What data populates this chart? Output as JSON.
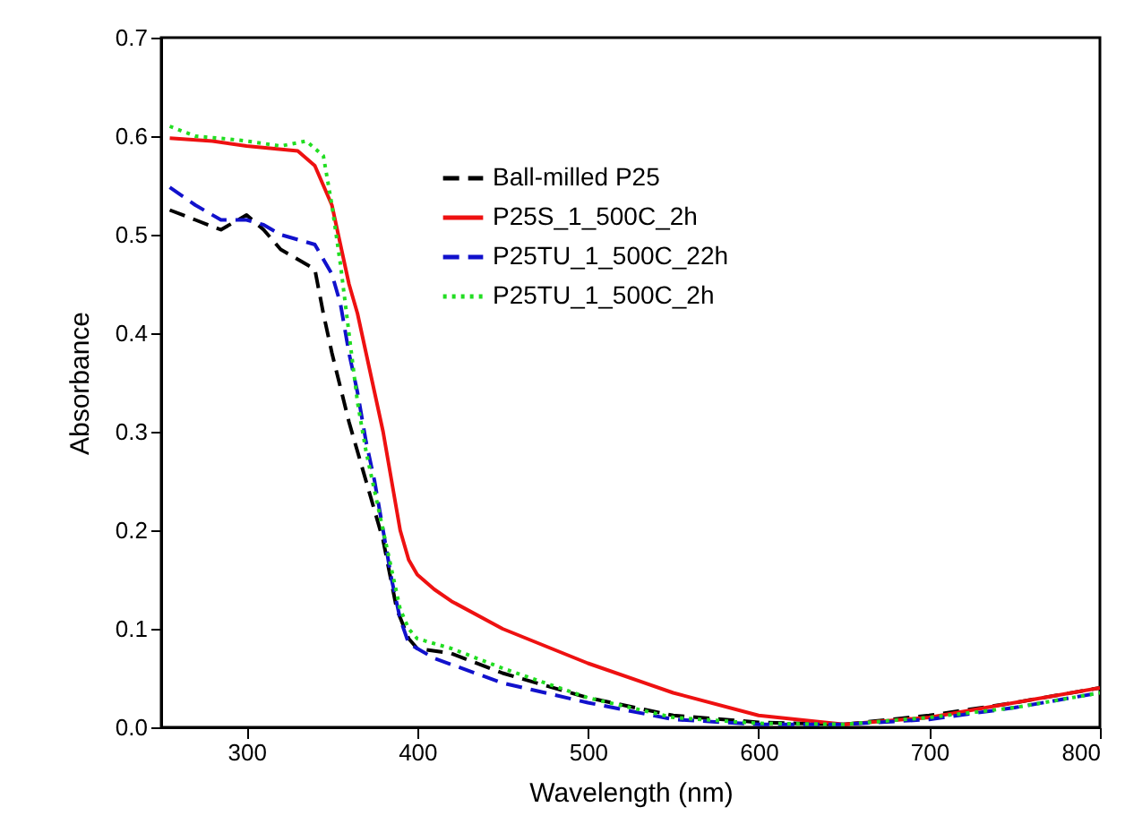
{
  "chart_data": {
    "type": "line",
    "xlabel": "Wavelength (nm)",
    "ylabel": "Absorbance",
    "xlim": [
      250,
      800
    ],
    "ylim": [
      0,
      0.7
    ],
    "xticks": [
      300,
      400,
      500,
      600,
      700,
      800
    ],
    "yticks": [
      {
        "value": 0,
        "label": "0.0"
      },
      0.1,
      0.2,
      0.3,
      0.4,
      0.5,
      0.6,
      0.7
    ],
    "grid": false,
    "legend": "top right",
    "series": [
      {
        "name": "Ball-milled P25",
        "color": "#000000",
        "line_style": "dashed",
        "x": [
          255,
          270,
          285,
          300,
          310,
          320,
          330,
          340,
          345,
          350,
          360,
          370,
          380,
          388,
          395,
          400,
          420,
          450,
          500,
          550,
          600,
          650,
          700,
          750,
          800
        ],
        "values": [
          0.525,
          0.515,
          0.505,
          0.52,
          0.505,
          0.485,
          0.475,
          0.465,
          0.42,
          0.38,
          0.31,
          0.25,
          0.19,
          0.12,
          0.09,
          0.08,
          0.075,
          0.055,
          0.03,
          0.012,
          0.005,
          0.003,
          0.012,
          0.025,
          0.04
        ]
      },
      {
        "name": "P25S_1_500C_2h",
        "color": "#ee1111",
        "line_style": "solid",
        "x": [
          255,
          280,
          300,
          330,
          340,
          350,
          355,
          360,
          365,
          370,
          375,
          380,
          385,
          390,
          395,
          400,
          410,
          420,
          450,
          500,
          550,
          600,
          650,
          700,
          750,
          800
        ],
        "values": [
          0.598,
          0.595,
          0.59,
          0.585,
          0.57,
          0.53,
          0.49,
          0.45,
          0.42,
          0.38,
          0.34,
          0.3,
          0.25,
          0.2,
          0.17,
          0.155,
          0.14,
          0.128,
          0.1,
          0.065,
          0.035,
          0.012,
          0.003,
          0.01,
          0.025,
          0.04
        ]
      },
      {
        "name": "P25TU_1_500C_22h",
        "color": "#1111cc",
        "line_style": "dashed",
        "x": [
          255,
          270,
          285,
          300,
          310,
          320,
          330,
          340,
          350,
          355,
          360,
          365,
          370,
          375,
          380,
          385,
          390,
          395,
          400,
          410,
          450,
          500,
          550,
          600,
          650,
          700,
          750,
          800
        ],
        "values": [
          0.548,
          0.53,
          0.515,
          0.515,
          0.51,
          0.5,
          0.495,
          0.49,
          0.46,
          0.43,
          0.38,
          0.34,
          0.29,
          0.25,
          0.2,
          0.15,
          0.11,
          0.085,
          0.08,
          0.07,
          0.045,
          0.025,
          0.008,
          0.003,
          0.003,
          0.008,
          0.02,
          0.035
        ]
      },
      {
        "name": "P25TU_1_500C_2h",
        "color": "#22dd22",
        "line_style": "dotted",
        "x": [
          255,
          270,
          290,
          300,
          320,
          335,
          345,
          350,
          355,
          360,
          365,
          370,
          375,
          380,
          385,
          390,
          395,
          400,
          420,
          450,
          500,
          550,
          600,
          650,
          700,
          750,
          800
        ],
        "values": [
          0.61,
          0.6,
          0.597,
          0.595,
          0.59,
          0.595,
          0.58,
          0.53,
          0.47,
          0.4,
          0.33,
          0.28,
          0.24,
          0.2,
          0.16,
          0.12,
          0.1,
          0.09,
          0.08,
          0.06,
          0.03,
          0.01,
          0.004,
          0.003,
          0.01,
          0.02,
          0.035
        ]
      }
    ]
  }
}
